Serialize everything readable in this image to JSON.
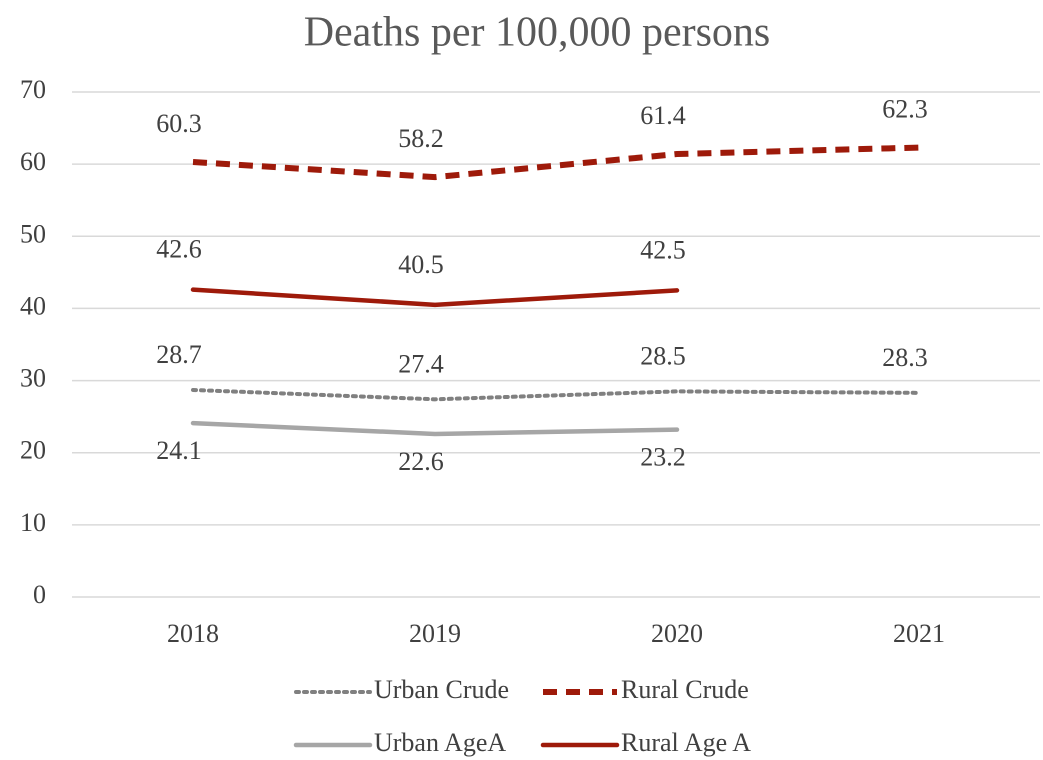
{
  "chart_data": {
    "type": "line",
    "title": "Deaths per 100,000 persons",
    "categories": [
      "2018",
      "2019",
      "2020",
      "2021"
    ],
    "series": [
      {
        "name": "Urban Crude",
        "color": "#808080",
        "style": "dotted",
        "values": [
          28.7,
          27.4,
          28.5,
          28.3
        ]
      },
      {
        "name": "Rural Crude",
        "color": "#9e1a0a",
        "style": "dashed",
        "values": [
          60.3,
          58.2,
          61.4,
          62.3
        ]
      },
      {
        "name": "Urban AgeA",
        "color": "#a6a6a6",
        "style": "solid",
        "values": [
          24.1,
          22.6,
          23.2,
          null
        ]
      },
      {
        "name": "Rural Age A",
        "color": "#9e1a0a",
        "style": "solid",
        "values": [
          42.6,
          40.5,
          42.5,
          null
        ]
      }
    ],
    "ylim": [
      0,
      70
    ],
    "yticks": [
      0,
      10,
      20,
      30,
      40,
      50,
      60,
      70
    ],
    "grid": true,
    "legend": "bottom"
  }
}
